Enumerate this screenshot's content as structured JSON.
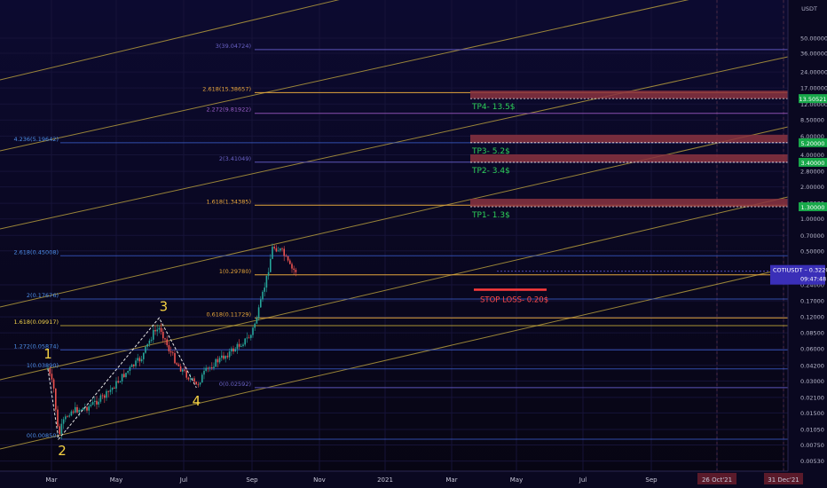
{
  "chart_data": {
    "type": "candlestick",
    "symbol": "COTIUSDT",
    "axis_unit": "USDT",
    "y_scale": "log",
    "x_tick_labels": [
      "Mar",
      "May",
      "Jul",
      "Sep",
      "Nov",
      "2021",
      "Mar",
      "May",
      "Jul",
      "Sep",
      "26 Oct'21",
      "31 Dec'21"
    ],
    "y_tick_labels": [
      "50.00000",
      "36.00000",
      "24.00000",
      "17.00000",
      "12.00000",
      "8.50000",
      "6.00000",
      "4.00000",
      "2.80000",
      "2.00000",
      "1.40000",
      "1.00000",
      "0.70000",
      "0.50000",
      "0.24000",
      "0.17000",
      "0.12000",
      "0.08500",
      "0.06000",
      "0.04200",
      "0.03000",
      "0.02100",
      "0.01500",
      "0.01050",
      "0.00750",
      "0.00530"
    ],
    "last_price_tag": {
      "symbol": "COTIUSDT",
      "price": "0.32208",
      "countdown": "09:47:48"
    },
    "tp_price_tags": [
      "13.50521",
      "5.20000",
      "3.40000",
      "1.30000"
    ],
    "fib_levels_upper": [
      {
        "label": "3(39.04724)",
        "value": 39.04724
      },
      {
        "label": "2.618(15.38657)",
        "value": 15.38657
      },
      {
        "label": "2.272(9.81922)",
        "value": 9.81922
      },
      {
        "label": "2(3.41049)",
        "value": 3.41049
      },
      {
        "label": "1.618(1.34385)",
        "value": 1.34385
      },
      {
        "label": "1(0.29780)",
        "value": 0.2978
      },
      {
        "label": "0.618(0.11729)",
        "value": 0.11729
      },
      {
        "label": "0(0.02592)",
        "value": 0.02592
      }
    ],
    "fib_levels_lower": [
      {
        "label": "4.236(5.19642)",
        "value": 5.19642
      },
      {
        "label": "2.618(0.45008)",
        "value": 0.45008
      },
      {
        "label": "2(0.17676)",
        "value": 0.17676
      },
      {
        "label": "1.618(0.09917)",
        "value": 0.09917
      },
      {
        "label": "1.272(0.05874)",
        "value": 0.05874
      },
      {
        "label": "1(0.03890)",
        "value": 0.0389
      },
      {
        "label": "0(0.00850)",
        "value": 0.0085
      }
    ],
    "targets": [
      {
        "label": "TP4- 13.5$",
        "value": 13.5
      },
      {
        "label": "TP3- 5.2$",
        "value": 5.2
      },
      {
        "label": "TP2- 3.4$",
        "value": 3.4
      },
      {
        "label": "TP1- 1.3$",
        "value": 1.3
      }
    ],
    "stop_loss": {
      "label": "STOP LOSS- 0.20$",
      "value": 0.2
    },
    "wave_labels": [
      "1",
      "2",
      "3",
      "4"
    ],
    "wave_points": [
      {
        "date": "2020-02-24",
        "price": 0.0389
      },
      {
        "date": "2020-03-13",
        "price": 0.0085
      },
      {
        "date": "2020-08-30",
        "price": 0.1173
      },
      {
        "date": "2020-11-01",
        "price": 0.0259
      }
    ],
    "price_path": [
      {
        "date": "2020-02-24",
        "price": 0.039
      },
      {
        "date": "2020-03-05",
        "price": 0.025
      },
      {
        "date": "2020-03-13",
        "price": 0.0089
      },
      {
        "date": "2020-03-20",
        "price": 0.012
      },
      {
        "date": "2020-04-01",
        "price": 0.0155
      },
      {
        "date": "2020-05-01",
        "price": 0.017
      },
      {
        "date": "2020-06-01",
        "price": 0.022
      },
      {
        "date": "2020-07-01",
        "price": 0.034
      },
      {
        "date": "2020-08-01",
        "price": 0.05
      },
      {
        "date": "2020-08-20",
        "price": 0.085
      },
      {
        "date": "2020-09-01",
        "price": 0.095
      },
      {
        "date": "2020-09-15",
        "price": 0.06
      },
      {
        "date": "2020-10-01",
        "price": 0.042
      },
      {
        "date": "2020-11-01",
        "price": 0.027
      },
      {
        "date": "2020-11-15",
        "price": 0.036
      },
      {
        "date": "2020-12-01",
        "price": 0.044
      },
      {
        "date": "2021-01-01",
        "price": 0.058
      },
      {
        "date": "2021-02-01",
        "price": 0.08
      },
      {
        "date": "2021-02-15",
        "price": 0.14
      },
      {
        "date": "2021-03-01",
        "price": 0.3
      },
      {
        "date": "2021-03-10",
        "price": 0.55
      },
      {
        "date": "2021-03-25",
        "price": 0.5
      },
      {
        "date": "2021-04-10",
        "price": 0.34
      },
      {
        "date": "2021-04-20",
        "price": 0.32
      }
    ],
    "grid": true,
    "legend": "none"
  }
}
